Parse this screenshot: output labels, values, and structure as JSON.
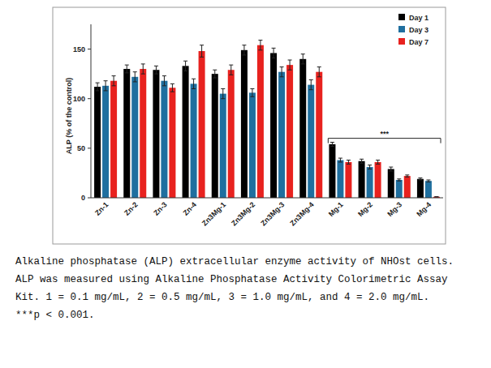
{
  "chart_data": {
    "type": "bar",
    "y_label": "ALP (% of the control)",
    "categories": [
      "Zn-1",
      "Zn-2",
      "Zn-3",
      "Zn-4",
      "Zn3Mg-1",
      "Zn3Mg-2",
      "Zn3Mg-3",
      "Zn3Mg-4",
      "Mg-1",
      "Mg-2",
      "Mg-3",
      "Mg-4"
    ],
    "series": [
      {
        "name": "Day 1",
        "color": "#000000",
        "values": [
          112,
          130,
          129,
          133,
          125,
          149,
          146,
          140,
          54,
          37,
          29,
          19
        ],
        "errors": [
          4,
          4,
          4,
          5,
          4,
          5,
          5,
          5,
          2,
          2,
          2,
          1
        ]
      },
      {
        "name": "Day 3",
        "color": "#1f6f9f",
        "values": [
          113,
          122,
          118,
          115,
          105,
          106,
          127,
          114,
          38,
          31,
          18,
          17
        ],
        "errors": [
          5,
          5,
          5,
          5,
          5,
          4,
          5,
          5,
          2,
          2,
          1,
          1
        ]
      },
      {
        "name": "Day 7",
        "color": "#e8221f",
        "values": [
          118,
          130,
          111,
          148,
          129,
          154,
          134,
          127,
          36,
          36,
          22,
          1
        ],
        "errors": [
          5,
          5,
          4,
          6,
          5,
          5,
          5,
          5,
          2,
          2,
          1,
          0
        ]
      }
    ],
    "ylim": [
      0,
      175
    ],
    "yticks": [
      0,
      50,
      100,
      150
    ],
    "grid": false,
    "legend": "top-right",
    "annotations": [
      {
        "text": "***",
        "x_start": "Mg-1",
        "x_end": "Mg-4",
        "y": 60
      }
    ],
    "caption": [
      "Alkaline phosphatase (ALP) extracellular enzyme activity of NHOst cells.",
      "ALP was measured using Alkaline Phosphatase Activity Colorimetric Assay",
      "Kit. 1 = 0.1 mg/mL, 2 = 0.5 mg/mL, 3 = 1.0 mg/mL, and 4 = 2.0 mg/mL.",
      "***p < 0.001."
    ]
  }
}
